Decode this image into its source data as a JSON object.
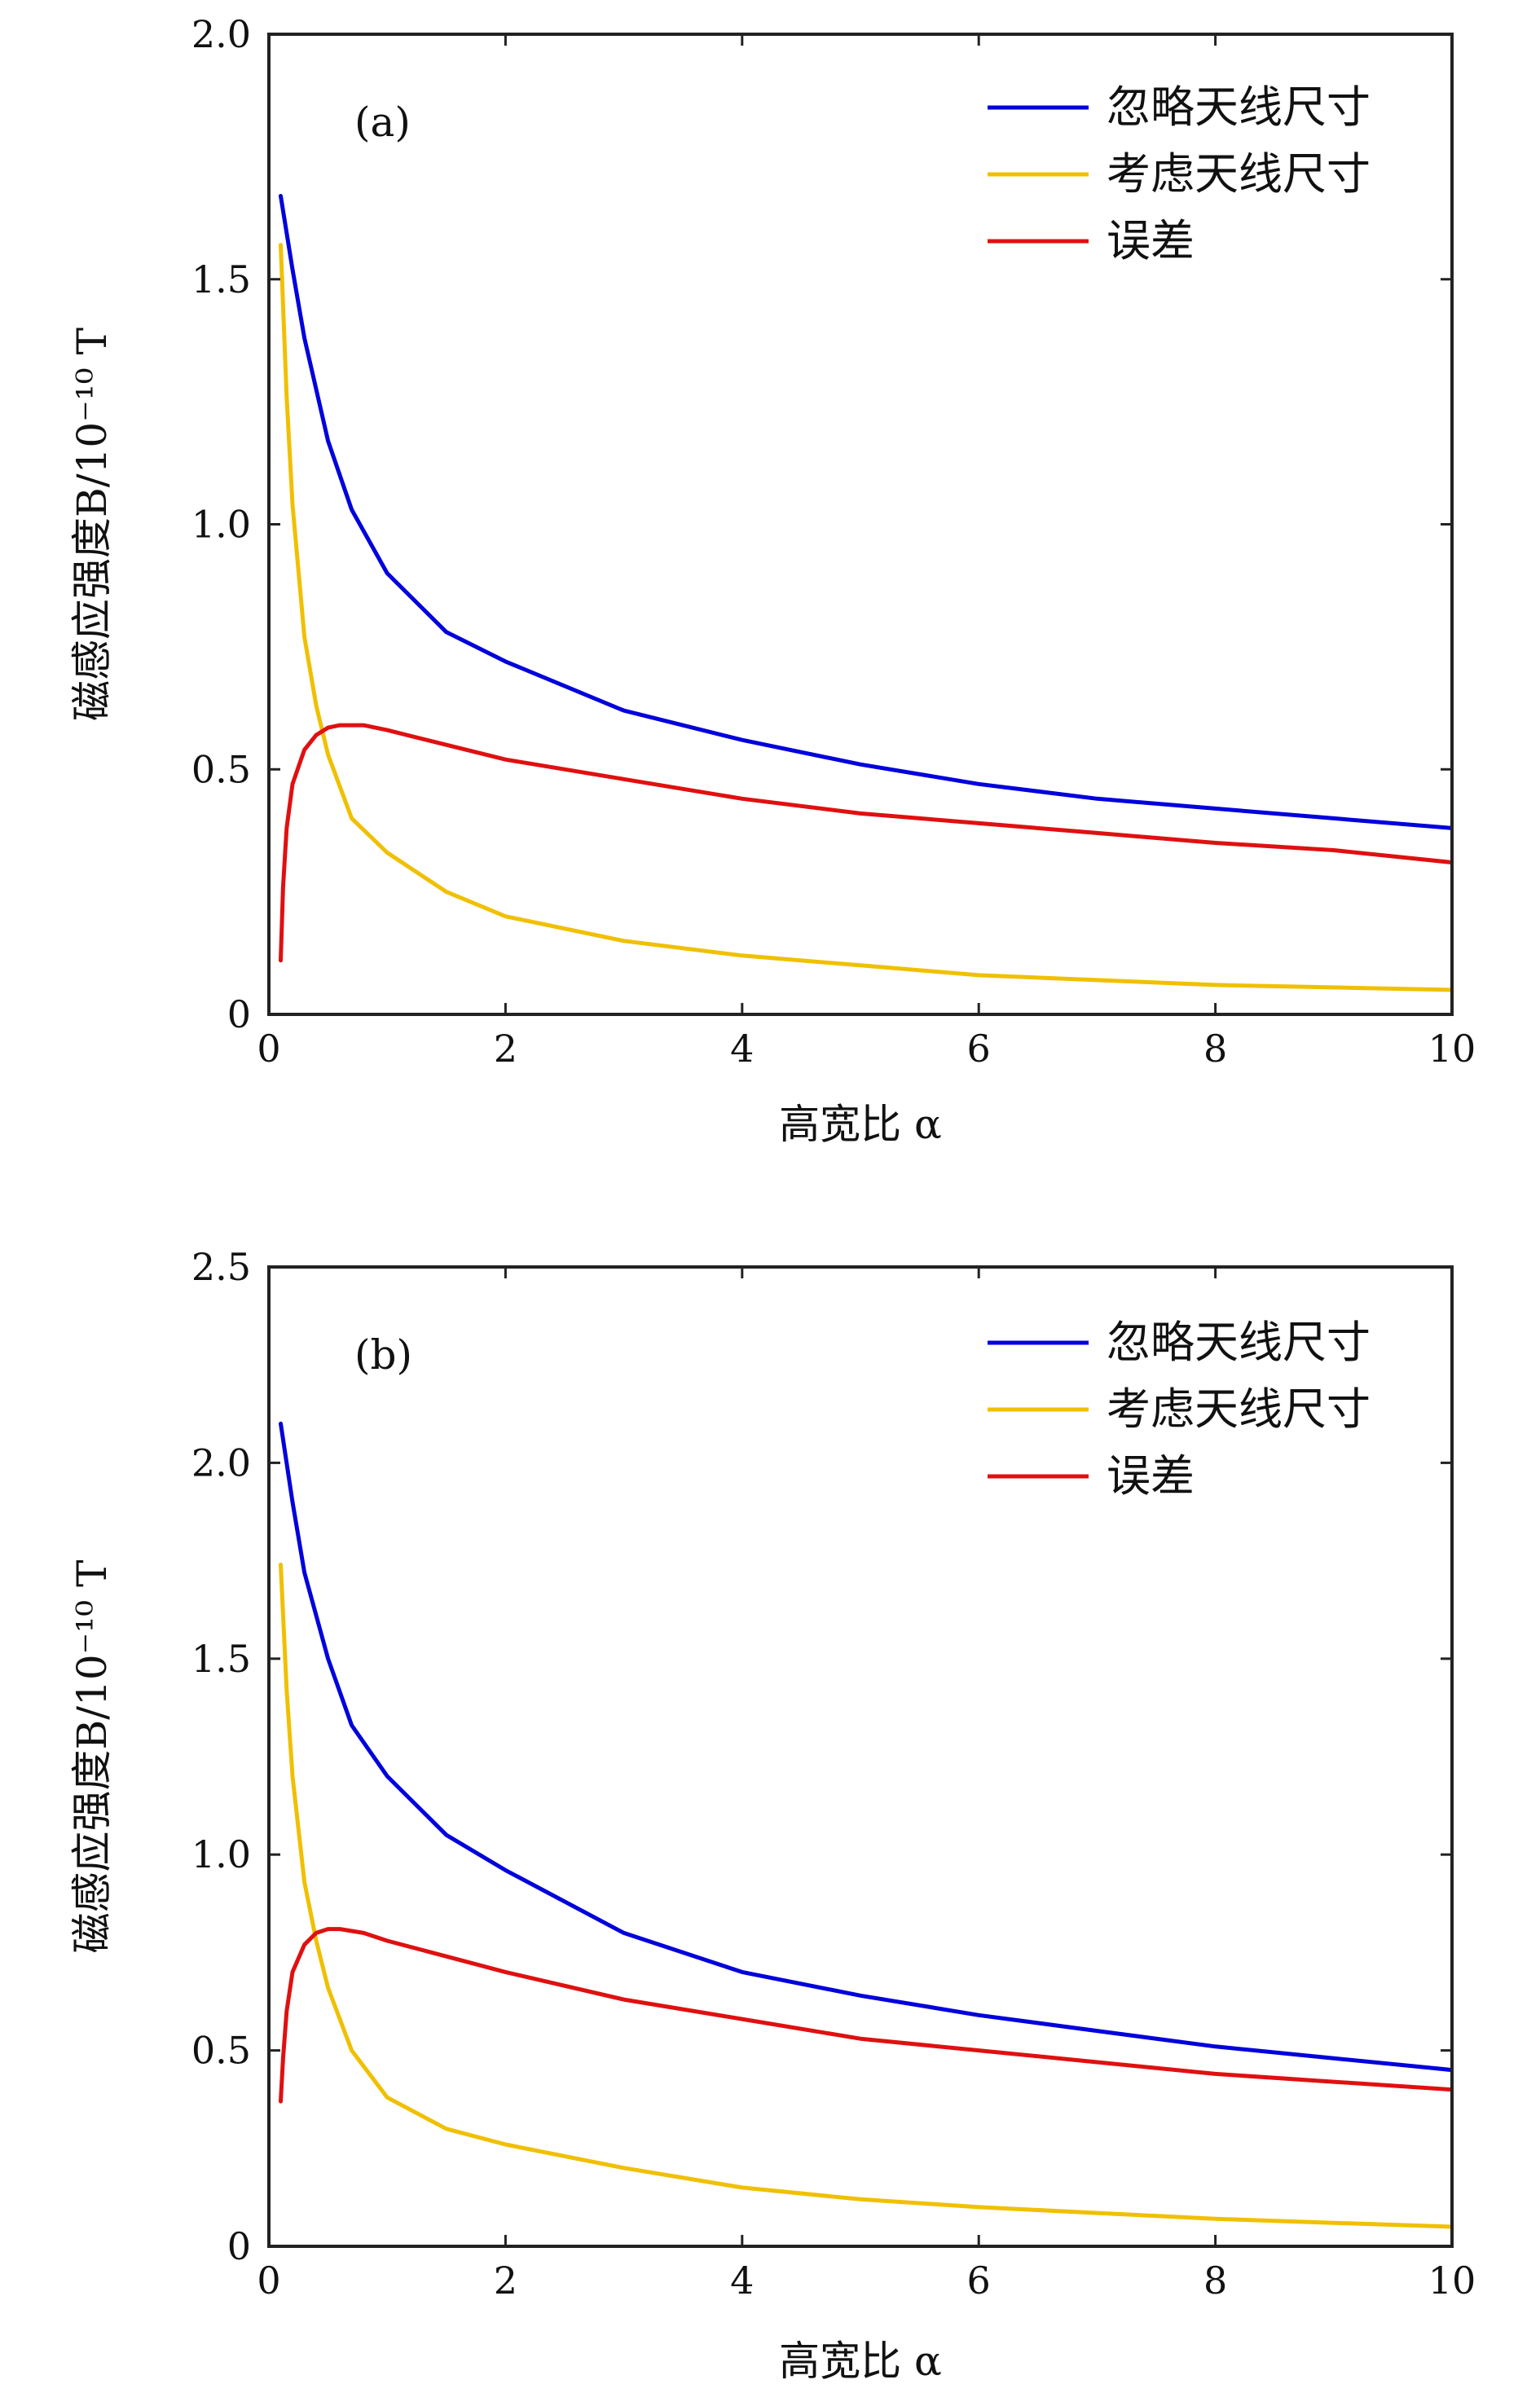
{
  "chart_data": [
    {
      "type": "line",
      "panel_label": "(a)",
      "xlabel": "高宽比 α",
      "ylabel": "磁感应强度B/10⁻¹⁰ T",
      "xlim": [
        0,
        10
      ],
      "ylim": [
        0,
        2.0
      ],
      "x_ticks": [
        "0",
        "2",
        "4",
        "6",
        "8",
        "10"
      ],
      "y_ticks": [
        "0",
        "0.5",
        "1.0",
        "1.5",
        "2.0"
      ],
      "grid": false,
      "legend_position": "top-right",
      "series": [
        {
          "name": "忽略天线尺寸",
          "color": "#0000dd",
          "x": [
            0.1,
            0.2,
            0.3,
            0.5,
            0.7,
            1.0,
            1.5,
            2,
            3,
            4,
            5,
            6,
            7,
            8,
            9,
            10
          ],
          "values": [
            1.67,
            1.52,
            1.38,
            1.17,
            1.03,
            0.9,
            0.78,
            0.72,
            0.62,
            0.56,
            0.51,
            0.47,
            0.44,
            0.42,
            0.4,
            0.38
          ]
        },
        {
          "name": "考虑天线尺寸",
          "color": "#f0c000",
          "x": [
            0.1,
            0.15,
            0.2,
            0.3,
            0.4,
            0.5,
            0.7,
            1.0,
            1.5,
            2,
            3,
            4,
            5,
            6,
            7,
            8,
            9,
            10
          ],
          "values": [
            1.57,
            1.26,
            1.04,
            0.77,
            0.63,
            0.53,
            0.4,
            0.33,
            0.25,
            0.2,
            0.15,
            0.12,
            0.1,
            0.08,
            0.07,
            0.06,
            0.055,
            0.05
          ]
        },
        {
          "name": "误差",
          "color": "#e01010",
          "x": [
            0.1,
            0.12,
            0.15,
            0.2,
            0.3,
            0.4,
            0.5,
            0.6,
            0.8,
            1.0,
            1.5,
            2,
            3,
            4,
            5,
            6,
            7,
            8,
            9,
            10
          ],
          "values": [
            0.11,
            0.26,
            0.38,
            0.47,
            0.54,
            0.57,
            0.585,
            0.59,
            0.59,
            0.58,
            0.55,
            0.52,
            0.48,
            0.44,
            0.41,
            0.39,
            0.37,
            0.35,
            0.335,
            0.31
          ]
        }
      ]
    },
    {
      "type": "line",
      "panel_label": "(b)",
      "xlabel": "高宽比 α",
      "ylabel": "磁感应强度B/10⁻¹⁰ T",
      "xlim": [
        0,
        10
      ],
      "ylim": [
        0,
        2.5
      ],
      "x_ticks": [
        "0",
        "2",
        "4",
        "6",
        "8",
        "10"
      ],
      "y_ticks": [
        "0",
        "0.5",
        "1.0",
        "1.5",
        "2.0",
        "2.5"
      ],
      "grid": false,
      "legend_position": "top-right",
      "series": [
        {
          "name": "忽略天线尺寸",
          "color": "#0000dd",
          "x": [
            0.1,
            0.2,
            0.3,
            0.5,
            0.7,
            1.0,
            1.5,
            2,
            3,
            4,
            5,
            6,
            7,
            8,
            9,
            10
          ],
          "values": [
            2.1,
            1.9,
            1.72,
            1.5,
            1.33,
            1.2,
            1.05,
            0.96,
            0.8,
            0.7,
            0.64,
            0.59,
            0.55,
            0.51,
            0.48,
            0.45
          ]
        },
        {
          "name": "考虑天线尺寸",
          "color": "#f0c000",
          "x": [
            0.1,
            0.15,
            0.2,
            0.3,
            0.4,
            0.5,
            0.7,
            1.0,
            1.5,
            2,
            3,
            4,
            5,
            6,
            7,
            8,
            9,
            10
          ],
          "values": [
            1.74,
            1.42,
            1.2,
            0.93,
            0.78,
            0.66,
            0.5,
            0.38,
            0.3,
            0.26,
            0.2,
            0.15,
            0.12,
            0.1,
            0.085,
            0.07,
            0.06,
            0.05
          ]
        },
        {
          "name": "误差",
          "color": "#e01010",
          "x": [
            0.1,
            0.12,
            0.15,
            0.2,
            0.3,
            0.4,
            0.5,
            0.6,
            0.8,
            1.0,
            1.5,
            2,
            3,
            4,
            5,
            6,
            7,
            8,
            9,
            10
          ],
          "values": [
            0.37,
            0.48,
            0.6,
            0.7,
            0.77,
            0.8,
            0.81,
            0.81,
            0.8,
            0.78,
            0.74,
            0.7,
            0.63,
            0.58,
            0.53,
            0.5,
            0.47,
            0.44,
            0.42,
            0.4
          ]
        }
      ]
    }
  ]
}
